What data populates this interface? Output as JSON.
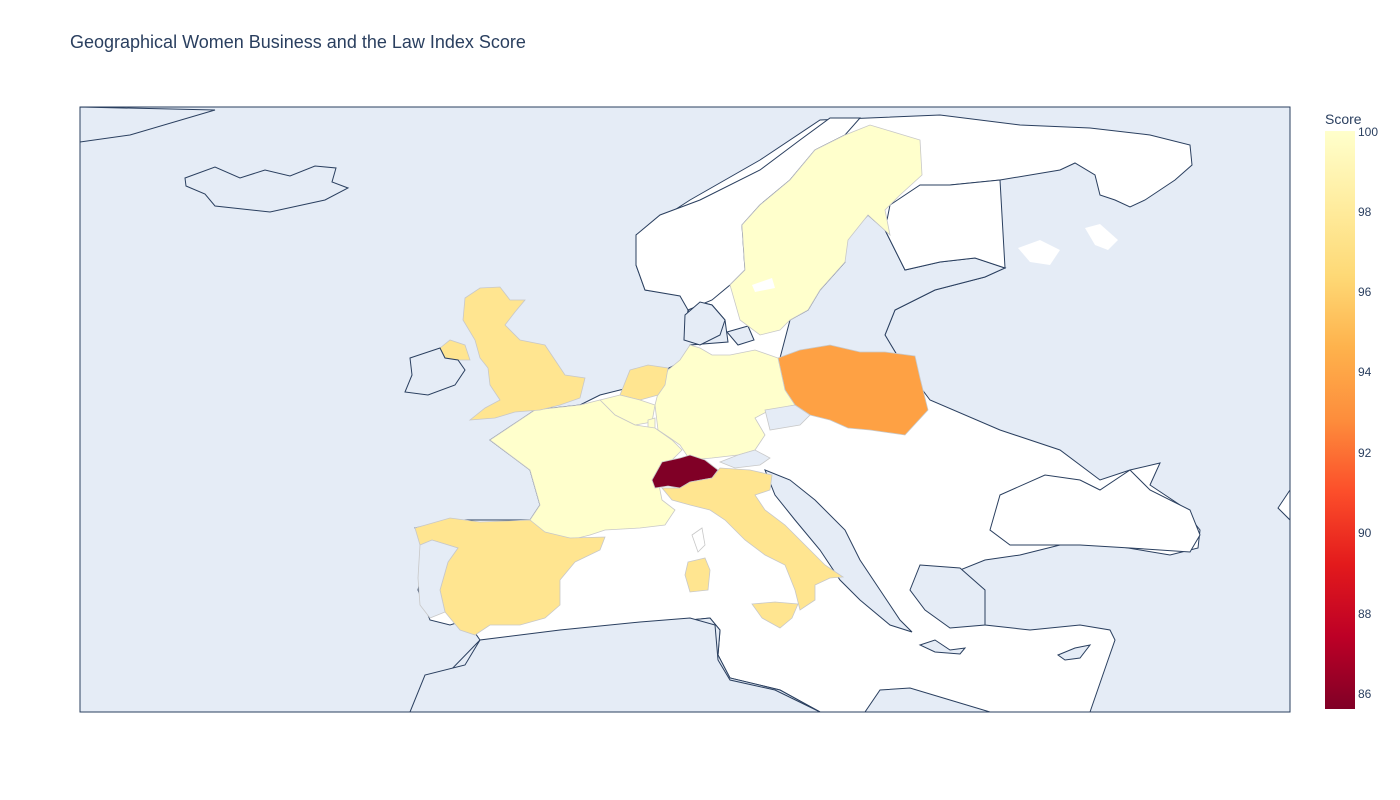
{
  "title": "Geographical Women Business and the Law Index Score",
  "colorbar": {
    "title": "Score",
    "ticks": [
      "100",
      "98",
      "96",
      "94",
      "92",
      "90",
      "88",
      "86"
    ],
    "range": [
      85.6,
      100
    ],
    "colorscale": [
      "#ffffcc",
      "#ffeda0",
      "#fed976",
      "#feb24c",
      "#fd8d3c",
      "#fc4e2a",
      "#e31a1c",
      "#bd0026",
      "#800026"
    ]
  },
  "colors": {
    "land": "#ffffff",
    "ocean": "#e5ecf6",
    "border": "#2a3f5f",
    "country_edge": "#c8c8c8"
  },
  "chart_data": {
    "type": "choropleth",
    "scope": "europe",
    "colorbar_title": "Score",
    "z_range": [
      85.6,
      100
    ],
    "countries": [
      {
        "id": "sweden",
        "score": 100
      },
      {
        "id": "germany",
        "score": 100
      },
      {
        "id": "france",
        "score": 100
      },
      {
        "id": "belgium",
        "score": 100
      },
      {
        "id": "luxembourg",
        "score": 100
      },
      {
        "id": "netherlands",
        "score": 97.5
      },
      {
        "id": "united-kingdom",
        "score": 97.5
      },
      {
        "id": "ireland",
        "score": 97.5
      },
      {
        "id": "spain",
        "score": 97.5
      },
      {
        "id": "italy",
        "score": 97.5
      },
      {
        "id": "poland",
        "score": 93.75
      },
      {
        "id": "switzerland",
        "score": 85.6
      }
    ]
  }
}
